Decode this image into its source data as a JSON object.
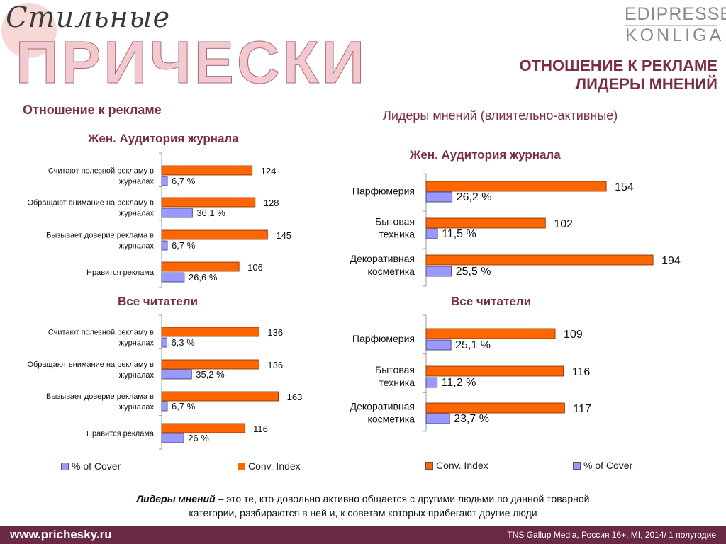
{
  "header": {
    "logo_script": "Стильные",
    "logo_main": "ПРИЧЕСКИ",
    "brand_top": "EDIPRESSE",
    "brand_bottom": "KONLIGA",
    "title_line1": "ОТНОШЕНИЕ К РЕКЛАМЕ",
    "title_line2": "ЛИДЕРЫ МНЕНИЙ"
  },
  "sections": {
    "left_title": "Отношение к рекламе",
    "right_title": "Лидеры мнений (влиятельно-активные)"
  },
  "panel_titles": {
    "left_top": "Жен. Аудитория журнала",
    "left_bottom": "Все читатели",
    "right_top": "Жен. Аудитория журнала",
    "right_bottom": "Все читатели"
  },
  "legend": {
    "left": {
      "cover": "% of Cover",
      "index": "Conv. Index"
    },
    "right": {
      "index": "Conv. Index",
      "cover": "% of Cover"
    }
  },
  "colors": {
    "index": "#ff6600",
    "cover": "#9999ff",
    "accent": "#7a2e4a"
  },
  "note": {
    "term": "Лидеры мнений",
    "rest_line1": " – это те, кто довольно активно общается с другими людьми по данной товарной",
    "line2": "категории, разбираются в ней и, к советам которых прибегают другие люди"
  },
  "footer": {
    "site": "www.prichesky.ru",
    "source": "TNS Gallup Media, Россия 16+, MI,  2014/ 1 полугодие"
  },
  "chart_data": [
    {
      "type": "bar",
      "title": "Жен. Аудитория журнала",
      "section": "Отношение к рекламе",
      "categories": [
        [
          "Считают полезной рекламу в",
          "журналах"
        ],
        [
          "Обращают внимание на рекламу в",
          "журналах"
        ],
        [
          "Вызывает доверие реклама в",
          "журналах"
        ],
        [
          "Нравится реклама"
        ]
      ],
      "series": [
        {
          "name": "Conv. Index",
          "values": [
            124,
            128,
            145,
            106
          ],
          "labels": [
            "124",
            "128",
            "145",
            "106"
          ]
        },
        {
          "name": "% of Cover",
          "values": [
            6.7,
            36.1,
            6.7,
            26.6
          ],
          "labels": [
            "6,7 %",
            "36,1 %",
            "6,7 %",
            "26,6 %"
          ]
        }
      ]
    },
    {
      "type": "bar",
      "title": "Все читатели",
      "section": "Отношение к рекламе",
      "categories": [
        [
          "Считают полезной рекламу в",
          "журналах"
        ],
        [
          "Обращают внимание на рекламу в",
          "журналах"
        ],
        [
          "Вызывает доверие реклама в",
          "журналах"
        ],
        [
          "Нравится реклама"
        ]
      ],
      "series": [
        {
          "name": "Conv. Index",
          "values": [
            136,
            136,
            163,
            116
          ],
          "labels": [
            "136",
            "136",
            "163",
            "116"
          ]
        },
        {
          "name": "% of Cover",
          "values": [
            6.3,
            35.2,
            6.7,
            26
          ],
          "labels": [
            "6,3 %",
            "35,2 %",
            "6,7 %",
            "26 %"
          ]
        }
      ]
    },
    {
      "type": "bar",
      "title": "Жен. Аудитория журнала",
      "section": "Лидеры мнений (влиятельно-активные)",
      "categories": [
        [
          "Парфюмерия"
        ],
        [
          "Бытовая",
          "техника"
        ],
        [
          "Декоративная",
          "косметика"
        ]
      ],
      "series": [
        {
          "name": "Conv. Index",
          "values": [
            154,
            102,
            194
          ],
          "labels": [
            "154",
            "102",
            "194"
          ]
        },
        {
          "name": "% of Cover",
          "values": [
            26.2,
            11.5,
            25.5
          ],
          "labels": [
            "26,2 %",
            "11,5 %",
            "25,5 %"
          ]
        }
      ]
    },
    {
      "type": "bar",
      "title": "Все читатели",
      "section": "Лидеры мнений (влиятельно-активные)",
      "categories": [
        [
          "Парфюмерия"
        ],
        [
          "Бытовая",
          "техника"
        ],
        [
          "Декоративная",
          "косметика"
        ]
      ],
      "series": [
        {
          "name": "Conv. Index",
          "values": [
            109,
            116,
            117
          ],
          "labels": [
            "109",
            "116",
            "117"
          ]
        },
        {
          "name": "% of Cover",
          "values": [
            25.1,
            11.2,
            23.7
          ],
          "labels": [
            "25,1 %",
            "11,2 %",
            "23,7 %"
          ]
        }
      ]
    }
  ]
}
